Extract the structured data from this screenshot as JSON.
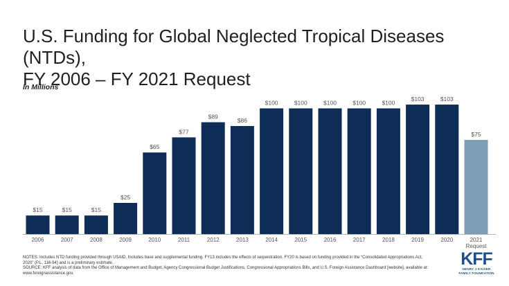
{
  "title_line1": "U.S. Funding for Global Neglected Tropical Diseases (NTDs),",
  "title_line2": "FY 2006 – FY 2021 Request",
  "subtitle": "In Millions",
  "chart_data": {
    "type": "bar",
    "title": "U.S. Funding for Global Neglected Tropical Diseases (NTDs), FY 2006 – FY 2021 Request",
    "ylabel": "In Millions",
    "categories": [
      "2006",
      "2007",
      "2008",
      "2009",
      "2010",
      "2011",
      "2012",
      "2013",
      "2014",
      "2015",
      "2016",
      "2017",
      "2018",
      "2019",
      "2020",
      "2021\nRequest"
    ],
    "values": [
      15,
      15,
      15,
      25,
      65,
      77,
      89,
      86,
      100,
      100,
      100,
      100,
      100,
      103,
      103,
      75
    ],
    "value_labels": [
      "$15",
      "$15",
      "$15",
      "$25",
      "$65",
      "$77",
      "$89",
      "$86",
      "$100",
      "$100",
      "$100",
      "$100",
      "$100",
      "$103",
      "$103",
      "$75"
    ],
    "highlight_index": 15,
    "ylim": [
      0,
      110
    ],
    "grid": false,
    "colors": {
      "bar": "#0d2d56",
      "highlight": "#7f9fb6",
      "axis": "#b3b3b3",
      "label": "#555555"
    }
  },
  "notes": {
    "line1": "NOTES: Includes NTD funding provided through USAID. Includes base and supplemental funding. FY13 includes the effects of sequestration. FY20 is based on funding provided in the “Consolidated Appropriations Act,",
    "line2": "2020” (P.L. 116-94) and is a preliminary estimate.",
    "line3": "SOURCE: KFF analysis of data from the Office of Management and Budget, Agency Congressional Budget Justifications, Congressional Appropriations Bills, and U.S. Foreign Assistance Dashboard [website], available at:",
    "line4": "www.foreignassistance.gov."
  },
  "logo": {
    "mark": "KFF",
    "line1": "HENRY J KAISER",
    "line2": "FAMILY FOUNDATION"
  }
}
